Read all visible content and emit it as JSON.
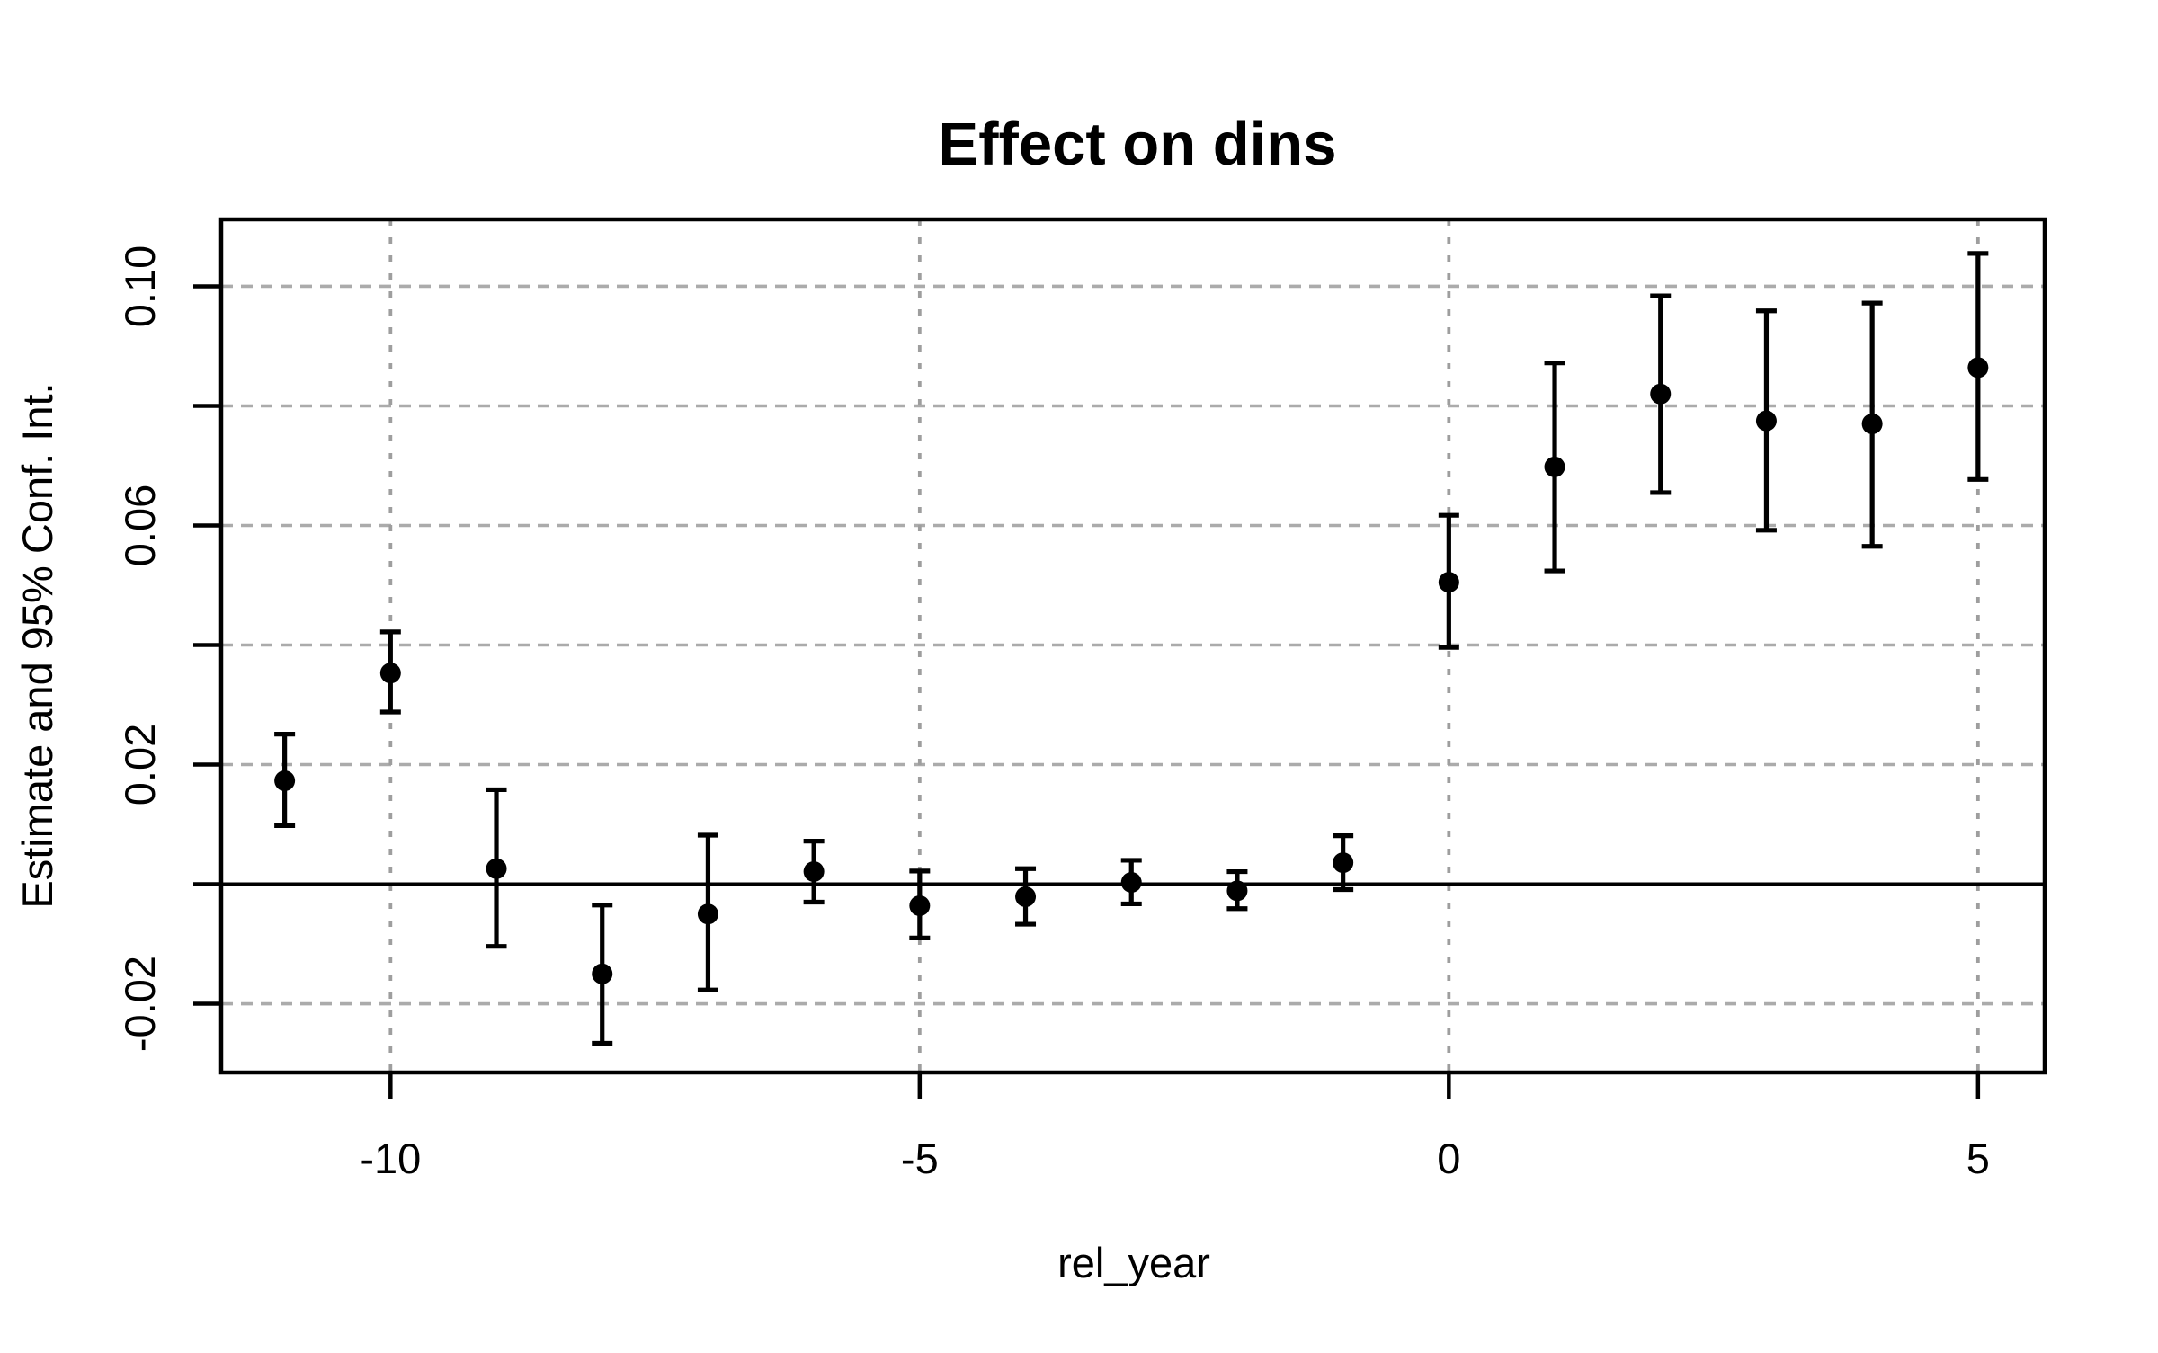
{
  "page": {
    "background": "#ffffff"
  },
  "chart_data": {
    "type": "scatter",
    "subtype": "error-bar-event-study",
    "title": "Effect on dins",
    "xlabel": "rel_year",
    "ylabel": "Estimate and 95% Conf. Int.",
    "xlim": [
      -11.6,
      5.63
    ],
    "ylim": [
      -0.0315,
      0.1112
    ],
    "grid": {
      "on": true,
      "horizontal_at": [
        -0.02,
        0,
        0.02,
        0.04,
        0.06,
        0.08,
        0.1
      ],
      "vertical_at": [
        -10,
        -5,
        0,
        5
      ]
    },
    "zero_line_y": 0,
    "x_ticks": [
      {
        "value": -10,
        "label": "-10"
      },
      {
        "value": -5,
        "label": "-5"
      },
      {
        "value": 0,
        "label": "0"
      },
      {
        "value": 5,
        "label": "5"
      }
    ],
    "y_ticks": [
      {
        "value": -0.02,
        "label": "-0.02"
      },
      {
        "value": 0,
        "label": ""
      },
      {
        "value": 0.02,
        "label": "0.02"
      },
      {
        "value": 0.04,
        "label": ""
      },
      {
        "value": 0.06,
        "label": "0.06"
      },
      {
        "value": 0.08,
        "label": ""
      },
      {
        "value": 0.1,
        "label": "0.10"
      }
    ],
    "series": [
      {
        "name": "estimate",
        "points": [
          {
            "x": -11,
            "estimate": 0.0173,
            "ci_low": 0.0098,
            "ci_high": 0.0251
          },
          {
            "x": -10,
            "estimate": 0.0353,
            "ci_low": 0.0288,
            "ci_high": 0.0422
          },
          {
            "x": -9,
            "estimate": 0.0026,
            "ci_low": -0.0104,
            "ci_high": 0.0158
          },
          {
            "x": -8,
            "estimate": -0.015,
            "ci_low": -0.0266,
            "ci_high": -0.0035
          },
          {
            "x": -7,
            "estimate": -0.005,
            "ci_low": -0.0177,
            "ci_high": 0.0082
          },
          {
            "x": -6,
            "estimate": 0.0021,
            "ci_low": -0.003,
            "ci_high": 0.0072
          },
          {
            "x": -5,
            "estimate": -0.0036,
            "ci_low": -0.009,
            "ci_high": 0.0022
          },
          {
            "x": -4,
            "estimate": -0.0021,
            "ci_low": -0.0067,
            "ci_high": 0.0026
          },
          {
            "x": -3,
            "estimate": 0.0003,
            "ci_low": -0.0033,
            "ci_high": 0.004
          },
          {
            "x": -2,
            "estimate": -0.0011,
            "ci_low": -0.0041,
            "ci_high": 0.0021
          },
          {
            "x": -1,
            "estimate": 0.0036,
            "ci_low": -0.0009,
            "ci_high": 0.0081
          },
          {
            "x": 0,
            "estimate": 0.0505,
            "ci_low": 0.0396,
            "ci_high": 0.0617
          },
          {
            "x": 1,
            "estimate": 0.0698,
            "ci_low": 0.0524,
            "ci_high": 0.0872
          },
          {
            "x": 2,
            "estimate": 0.082,
            "ci_low": 0.0655,
            "ci_high": 0.0984
          },
          {
            "x": 3,
            "estimate": 0.0775,
            "ci_low": 0.0592,
            "ci_high": 0.0959
          },
          {
            "x": 4,
            "estimate": 0.077,
            "ci_low": 0.0565,
            "ci_high": 0.0972
          },
          {
            "x": 5,
            "estimate": 0.0864,
            "ci_low": 0.0677,
            "ci_high": 0.1055
          }
        ]
      }
    ],
    "style": {
      "point_color": "#000000",
      "error_bar_color": "#000000",
      "zero_line_color": "#000000",
      "border_color": "#000000",
      "grid_dashed_color": "#ababab",
      "grid_dotted_color": "#9e9e9e",
      "background": "#ffffff"
    },
    "legend": {
      "visible": false
    }
  }
}
